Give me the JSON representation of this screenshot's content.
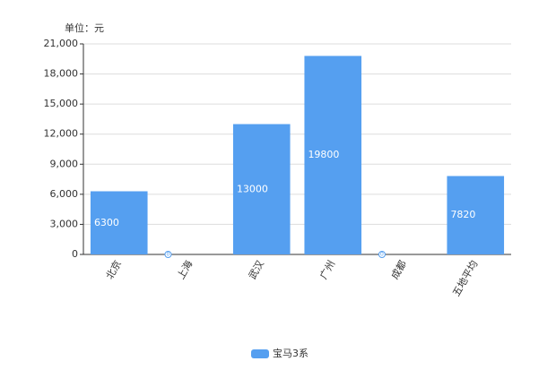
{
  "chart_data": {
    "type": "bar",
    "unit_label": "单位：元",
    "categories": [
      "北京",
      "上海",
      "武汉",
      "广州",
      "成都",
      "五地平均"
    ],
    "series": [
      {
        "name": "宝马3系",
        "color": "#559ff0",
        "values": [
          6300,
          0,
          13000,
          19800,
          0,
          7820
        ]
      }
    ],
    "ylim": [
      0,
      21000
    ],
    "yticks": [
      0,
      {
        "value": 3000,
        "label": "3,000"
      },
      {
        "value": 6000,
        "label": "6,000"
      },
      {
        "value": 9000,
        "label": "9,000"
      },
      {
        "value": 12000,
        "label": "12,000"
      },
      {
        "value": 15000,
        "label": "15,000"
      },
      {
        "value": 18000,
        "label": "18,000"
      },
      {
        "value": 21000,
        "label": "21,000"
      }
    ],
    "grid": true,
    "legend": "bottom"
  }
}
